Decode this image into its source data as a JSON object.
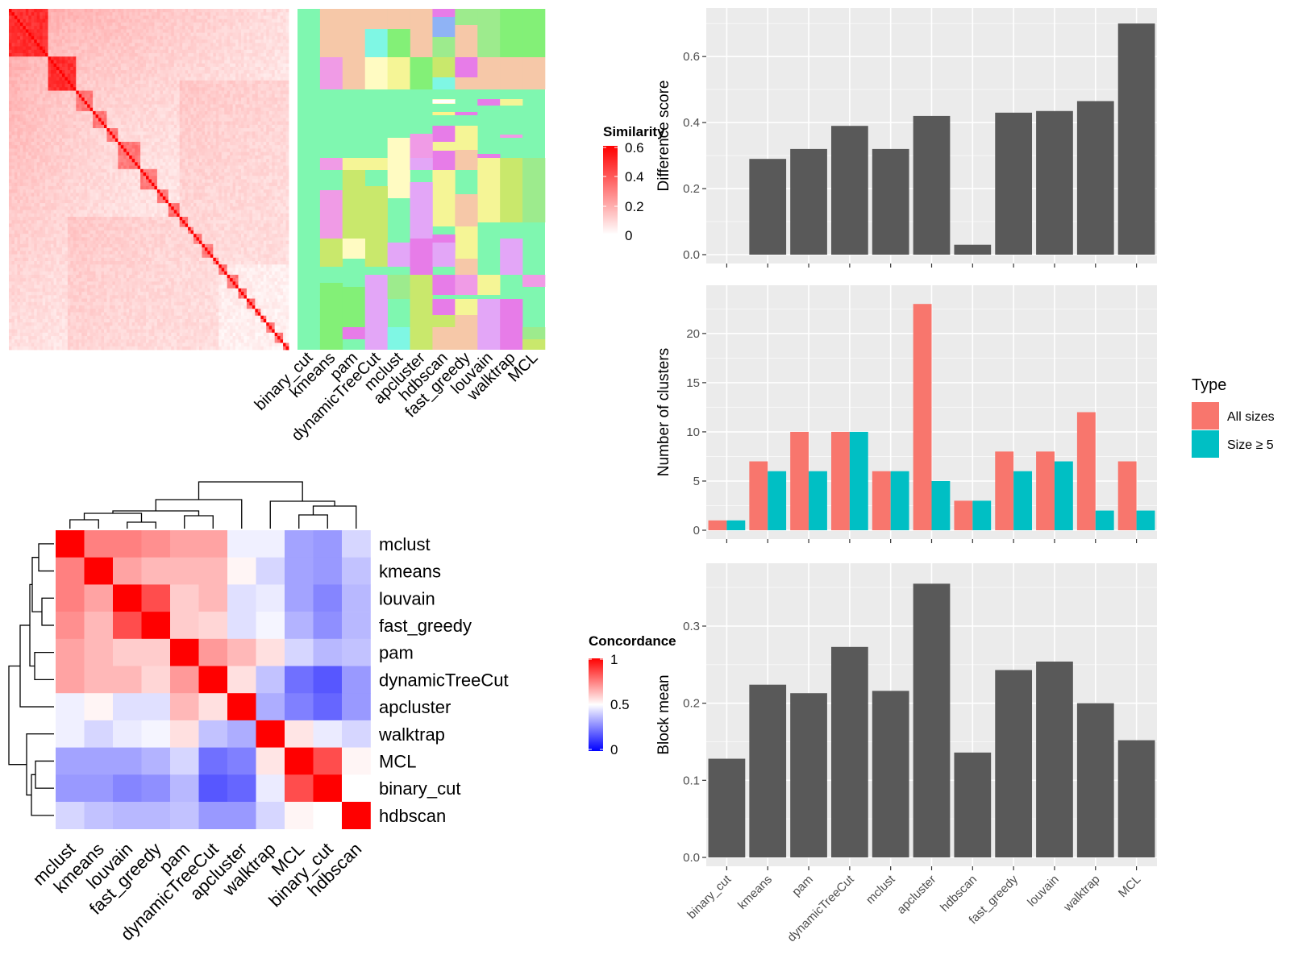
{
  "methods": [
    "binary_cut",
    "kmeans",
    "pam",
    "dynamicTreeCut",
    "mclust",
    "apcluster",
    "hdbscan",
    "fast_greedy",
    "louvain",
    "walktrap",
    "MCL"
  ],
  "similarity_legend": {
    "title": "Similarity",
    "ticks": [
      "0.6",
      "0.4",
      "0.2",
      "0"
    ],
    "colors": [
      "#ff0000",
      "#ffffff"
    ]
  },
  "concordance_legend": {
    "title": "Concordance",
    "ticks": [
      "1",
      "0.5",
      "0"
    ],
    "colors": [
      "#ff0000",
      "#ffffff",
      "#0000ff"
    ]
  },
  "type_legend": {
    "title": "Type",
    "items": [
      {
        "label": "All sizes",
        "color": "#F8766D"
      },
      {
        "label": "Size ≥ 5",
        "color": "#00BFC4"
      }
    ]
  },
  "chart_data": [
    {
      "type": "heatmap",
      "name": "similarity_matrix",
      "size": 100,
      "legend_title": "Similarity",
      "value_range": [
        0,
        0.6
      ],
      "description_blocks": [
        14,
        10,
        6,
        5,
        4,
        8,
        6,
        4,
        4,
        3,
        2,
        3,
        4,
        2,
        3,
        4,
        3,
        3,
        2,
        2,
        3,
        3
      ]
    },
    {
      "type": "heatmap",
      "name": "concordance_matrix",
      "legend_title": "Concordance",
      "value_range": [
        0,
        1
      ],
      "rows": [
        "mclust",
        "kmeans",
        "louvain",
        "fast_greedy",
        "pam",
        "dynamicTreeCut",
        "apcluster",
        "walktrap",
        "MCL",
        "binary_cut",
        "hdbscan"
      ],
      "cols": [
        "mclust",
        "kmeans",
        "louvain",
        "fast_greedy",
        "pam",
        "dynamicTreeCut",
        "apcluster",
        "walktrap",
        "MCL",
        "binary_cut",
        "hdbscan"
      ],
      "values": [
        [
          1.0,
          0.75,
          0.75,
          0.72,
          0.68,
          0.68,
          0.47,
          0.47,
          0.32,
          0.3,
          0.42
        ],
        [
          0.75,
          1.0,
          0.68,
          0.64,
          0.64,
          0.64,
          0.52,
          0.42,
          0.32,
          0.3,
          0.38
        ],
        [
          0.75,
          0.68,
          1.0,
          0.85,
          0.6,
          0.64,
          0.44,
          0.46,
          0.32,
          0.26,
          0.36
        ],
        [
          0.72,
          0.64,
          0.85,
          1.0,
          0.6,
          0.58,
          0.44,
          0.48,
          0.35,
          0.28,
          0.36
        ],
        [
          0.68,
          0.64,
          0.6,
          0.6,
          1.0,
          0.7,
          0.64,
          0.56,
          0.42,
          0.36,
          0.38
        ],
        [
          0.68,
          0.64,
          0.64,
          0.58,
          0.7,
          1.0,
          0.56,
          0.38,
          0.22,
          0.17,
          0.3
        ],
        [
          0.47,
          0.52,
          0.44,
          0.44,
          0.64,
          0.56,
          1.0,
          0.34,
          0.25,
          0.2,
          0.3
        ],
        [
          0.47,
          0.42,
          0.46,
          0.48,
          0.56,
          0.38,
          0.34,
          1.0,
          0.55,
          0.46,
          0.42
        ],
        [
          0.32,
          0.32,
          0.32,
          0.35,
          0.42,
          0.22,
          0.25,
          0.55,
          1.0,
          0.85,
          0.52
        ],
        [
          0.3,
          0.3,
          0.26,
          0.28,
          0.36,
          0.17,
          0.2,
          0.46,
          0.85,
          1.0,
          0.5
        ],
        [
          0.42,
          0.38,
          0.36,
          0.36,
          0.38,
          0.3,
          0.3,
          0.42,
          0.52,
          0.5,
          1.0
        ]
      ]
    },
    {
      "type": "bar",
      "categories": [
        "binary_cut",
        "kmeans",
        "pam",
        "dynamicTreeCut",
        "mclust",
        "apcluster",
        "hdbscan",
        "fast_greedy",
        "louvain",
        "walktrap",
        "MCL"
      ],
      "values": [
        0.0,
        0.29,
        0.32,
        0.39,
        0.32,
        0.42,
        0.03,
        0.43,
        0.435,
        0.465,
        0.7
      ],
      "ylabel": "Difference score",
      "ylim": [
        0,
        0.72
      ],
      "yticks": [
        "0.0",
        "0.2",
        "0.4",
        "0.6"
      ],
      "color": "#595959"
    },
    {
      "type": "bar",
      "categories": [
        "binary_cut",
        "kmeans",
        "pam",
        "dynamicTreeCut",
        "mclust",
        "apcluster",
        "hdbscan",
        "fast_greedy",
        "louvain",
        "walktrap",
        "MCL"
      ],
      "series": [
        {
          "name": "All sizes",
          "values": [
            1,
            7,
            10,
            10,
            6,
            23,
            3,
            8,
            8,
            12,
            7
          ]
        },
        {
          "name": "Size ≥ 5",
          "values": [
            1,
            6,
            6,
            10,
            6,
            5,
            3,
            6,
            7,
            2,
            2
          ]
        }
      ],
      "ylabel": "Number of clusters",
      "ylim": [
        0,
        24
      ],
      "yticks": [
        "0",
        "5",
        "10",
        "15",
        "20"
      ],
      "legend": "right"
    },
    {
      "type": "bar",
      "categories": [
        "binary_cut",
        "kmeans",
        "pam",
        "dynamicTreeCut",
        "mclust",
        "apcluster",
        "hdbscan",
        "fast_greedy",
        "louvain",
        "walktrap",
        "MCL"
      ],
      "values": [
        0.128,
        0.224,
        0.213,
        0.273,
        0.216,
        0.355,
        0.136,
        0.243,
        0.254,
        0.2,
        0.152
      ],
      "ylabel": "Block mean",
      "ylim": [
        0,
        0.37
      ],
      "yticks": [
        "0.0",
        "0.1",
        "0.2",
        "0.3"
      ],
      "color": "#595959"
    }
  ]
}
